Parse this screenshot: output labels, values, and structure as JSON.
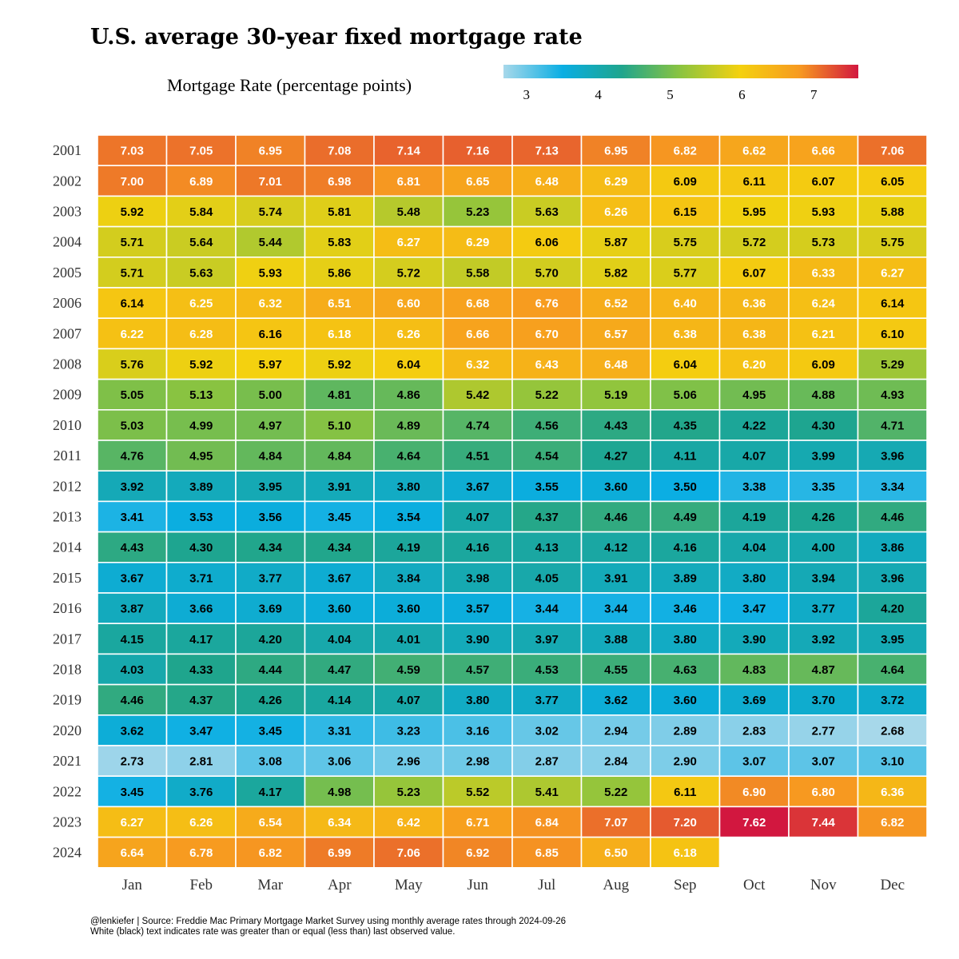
{
  "chart_data": {
    "type": "heatmap",
    "title": "U.S. average 30-year fixed mortgage rate",
    "legend": {
      "title": "Mortgage Rate  (percentage points)",
      "ticks": [
        3,
        4,
        5,
        6,
        7
      ],
      "range": [
        2.68,
        7.62
      ],
      "colors": [
        "#a7d8ea",
        "#0aaee3",
        "#1fa58d",
        "#8cc43f",
        "#f4d10f",
        "#f79a20",
        "#d2173f"
      ]
    },
    "months": [
      "Jan",
      "Feb",
      "Mar",
      "Apr",
      "May",
      "Jun",
      "Jul",
      "Aug",
      "Sep",
      "Oct",
      "Nov",
      "Dec"
    ],
    "years": [
      "2001",
      "2002",
      "2003",
      "2004",
      "2005",
      "2006",
      "2007",
      "2008",
      "2009",
      "2010",
      "2011",
      "2012",
      "2013",
      "2014",
      "2015",
      "2016",
      "2017",
      "2018",
      "2019",
      "2020",
      "2021",
      "2022",
      "2023",
      "2024"
    ],
    "values": [
      [
        7.03,
        7.05,
        6.95,
        7.08,
        7.14,
        7.16,
        7.13,
        6.95,
        6.82,
        6.62,
        6.66,
        7.06
      ],
      [
        7.0,
        6.89,
        7.01,
        6.98,
        6.81,
        6.65,
        6.48,
        6.29,
        6.09,
        6.11,
        6.07,
        6.05
      ],
      [
        5.92,
        5.84,
        5.74,
        5.81,
        5.48,
        5.23,
        5.63,
        6.26,
        6.15,
        5.95,
        5.93,
        5.88
      ],
      [
        5.71,
        5.64,
        5.44,
        5.83,
        6.27,
        6.29,
        6.06,
        5.87,
        5.75,
        5.72,
        5.73,
        5.75
      ],
      [
        5.71,
        5.63,
        5.93,
        5.86,
        5.72,
        5.58,
        5.7,
        5.82,
        5.77,
        6.07,
        6.33,
        6.27
      ],
      [
        6.14,
        6.25,
        6.32,
        6.51,
        6.6,
        6.68,
        6.76,
        6.52,
        6.4,
        6.36,
        6.24,
        6.14
      ],
      [
        6.22,
        6.28,
        6.16,
        6.18,
        6.26,
        6.66,
        6.7,
        6.57,
        6.38,
        6.38,
        6.21,
        6.1
      ],
      [
        5.76,
        5.92,
        5.97,
        5.92,
        6.04,
        6.32,
        6.43,
        6.48,
        6.04,
        6.2,
        6.09,
        5.29
      ],
      [
        5.05,
        5.13,
        5.0,
        4.81,
        4.86,
        5.42,
        5.22,
        5.19,
        5.06,
        4.95,
        4.88,
        4.93
      ],
      [
        5.03,
        4.99,
        4.97,
        5.1,
        4.89,
        4.74,
        4.56,
        4.43,
        4.35,
        4.22,
        4.3,
        4.71
      ],
      [
        4.76,
        4.95,
        4.84,
        4.84,
        4.64,
        4.51,
        4.54,
        4.27,
        4.11,
        4.07,
        3.99,
        3.96
      ],
      [
        3.92,
        3.89,
        3.95,
        3.91,
        3.8,
        3.67,
        3.55,
        3.6,
        3.5,
        3.38,
        3.35,
        3.34
      ],
      [
        3.41,
        3.53,
        3.56,
        3.45,
        3.54,
        4.07,
        4.37,
        4.46,
        4.49,
        4.19,
        4.26,
        4.46
      ],
      [
        4.43,
        4.3,
        4.34,
        4.34,
        4.19,
        4.16,
        4.13,
        4.12,
        4.16,
        4.04,
        4.0,
        3.86
      ],
      [
        3.67,
        3.71,
        3.77,
        3.67,
        3.84,
        3.98,
        4.05,
        3.91,
        3.89,
        3.8,
        3.94,
        3.96
      ],
      [
        3.87,
        3.66,
        3.69,
        3.6,
        3.6,
        3.57,
        3.44,
        3.44,
        3.46,
        3.47,
        3.77,
        4.2
      ],
      [
        4.15,
        4.17,
        4.2,
        4.04,
        4.01,
        3.9,
        3.97,
        3.88,
        3.8,
        3.9,
        3.92,
        3.95
      ],
      [
        4.03,
        4.33,
        4.44,
        4.47,
        4.59,
        4.57,
        4.53,
        4.55,
        4.63,
        4.83,
        4.87,
        4.64
      ],
      [
        4.46,
        4.37,
        4.26,
        4.14,
        4.07,
        3.8,
        3.77,
        3.62,
        3.6,
        3.69,
        3.7,
        3.72
      ],
      [
        3.62,
        3.47,
        3.45,
        3.31,
        3.23,
        3.16,
        3.02,
        2.94,
        2.89,
        2.83,
        2.77,
        2.68
      ],
      [
        2.73,
        2.81,
        3.08,
        3.06,
        2.96,
        2.98,
        2.87,
        2.84,
        2.9,
        3.07,
        3.07,
        3.1
      ],
      [
        3.45,
        3.76,
        4.17,
        4.98,
        5.23,
        5.52,
        5.41,
        5.22,
        6.11,
        6.9,
        6.8,
        6.36
      ],
      [
        6.27,
        6.26,
        6.54,
        6.34,
        6.42,
        6.71,
        6.84,
        7.07,
        7.2,
        7.62,
        7.44,
        6.82
      ],
      [
        6.64,
        6.78,
        6.82,
        6.99,
        7.06,
        6.92,
        6.85,
        6.5,
        6.18,
        null,
        null,
        null
      ]
    ],
    "last_observed": 6.18,
    "text_color_rule": {
      "greater_or_equal": "#ffffff",
      "less": "#000000"
    },
    "footer": [
      "@lenkiefer | Source: Freddie Mac Primary Mortgage Market Survey using monthly average rates through 2024-09-26",
      "White (black) text indicates rate was greater than or equal (less than) last observed value."
    ]
  }
}
